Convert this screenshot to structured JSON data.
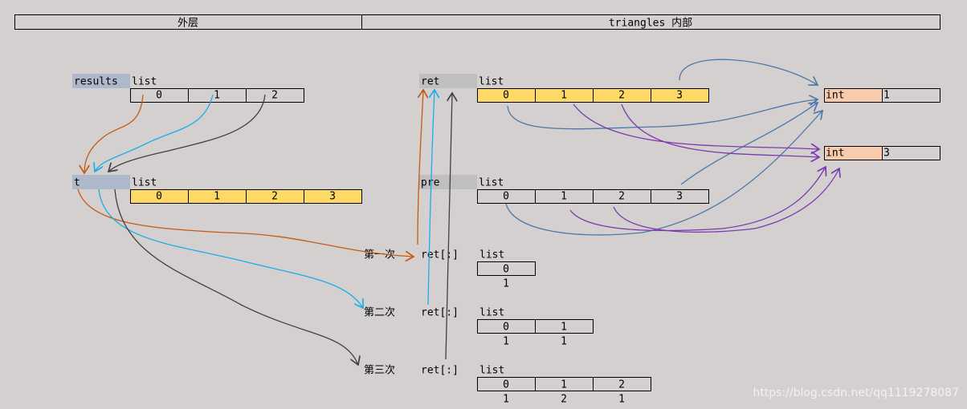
{
  "header": {
    "outer": "外层",
    "inner": "triangles 内部"
  },
  "outer": {
    "results": {
      "label": "results",
      "type": "list",
      "cells": [
        0,
        1,
        2
      ]
    },
    "t": {
      "label": "t",
      "type": "list",
      "cells": [
        0,
        1,
        2,
        3
      ]
    }
  },
  "inner": {
    "ret": {
      "label": "ret",
      "type": "list",
      "cells": [
        0,
        1,
        2,
        3
      ]
    },
    "pre": {
      "label": "pre",
      "type": "list",
      "cells": [
        0,
        1,
        2,
        3
      ]
    },
    "ints": [
      {
        "type": "int",
        "value": 1
      },
      {
        "type": "int",
        "value": 3
      }
    ],
    "iterations": [
      {
        "label": "第一次",
        "name": "ret[:]",
        "type": "list",
        "indices": [
          0
        ],
        "values": [
          1
        ]
      },
      {
        "label": "第二次",
        "name": "ret[:]",
        "type": "list",
        "indices": [
          0,
          1
        ],
        "values": [
          1,
          1
        ]
      },
      {
        "label": "第三次",
        "name": "ret[:]",
        "type": "list",
        "indices": [
          0,
          1,
          2
        ],
        "values": [
          1,
          2,
          1
        ]
      }
    ]
  },
  "watermark": "https://blog.csdn.net/qq1119278087"
}
